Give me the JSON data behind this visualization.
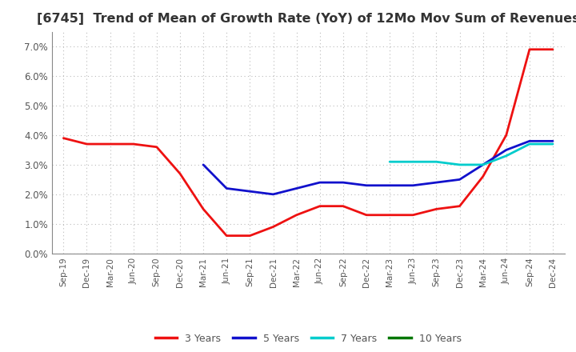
{
  "title": "[6745]  Trend of Mean of Growth Rate (YoY) of 12Mo Mov Sum of Revenues",
  "title_fontsize": 11.5,
  "title_color": "#333333",
  "ylim": [
    0.0,
    0.075
  ],
  "yticks": [
    0.0,
    0.01,
    0.02,
    0.03,
    0.04,
    0.05,
    0.06,
    0.07
  ],
  "x_labels": [
    "Sep-19",
    "Dec-19",
    "Mar-20",
    "Jun-20",
    "Sep-20",
    "Dec-20",
    "Mar-21",
    "Jun-21",
    "Sep-21",
    "Dec-21",
    "Mar-22",
    "Jun-22",
    "Sep-22",
    "Dec-22",
    "Mar-23",
    "Jun-23",
    "Sep-23",
    "Dec-23",
    "Mar-24",
    "Jun-24",
    "Sep-24",
    "Dec-24"
  ],
  "series": {
    "3 Years": {
      "color": "#EE1111",
      "linewidth": 2.0,
      "values": [
        0.039,
        0.037,
        0.037,
        0.037,
        0.036,
        0.027,
        0.015,
        0.006,
        0.006,
        0.009,
        0.013,
        0.016,
        0.016,
        0.013,
        0.013,
        0.013,
        0.015,
        0.016,
        0.026,
        0.04,
        0.069,
        0.069
      ]
    },
    "5 Years": {
      "color": "#1111CC",
      "linewidth": 2.0,
      "values": [
        null,
        null,
        null,
        null,
        null,
        null,
        0.03,
        0.022,
        0.021,
        0.02,
        0.022,
        0.024,
        0.024,
        0.023,
        0.023,
        0.023,
        0.024,
        0.025,
        0.03,
        0.035,
        0.038,
        0.038
      ]
    },
    "7 Years": {
      "color": "#00CCCC",
      "linewidth": 2.0,
      "values": [
        null,
        null,
        null,
        null,
        null,
        null,
        null,
        null,
        null,
        null,
        null,
        null,
        null,
        null,
        0.031,
        0.031,
        0.031,
        0.03,
        0.03,
        0.033,
        0.037,
        0.037
      ]
    },
    "10 Years": {
      "color": "#007700",
      "linewidth": 2.0,
      "values": [
        null,
        null,
        null,
        null,
        null,
        null,
        null,
        null,
        null,
        null,
        null,
        null,
        null,
        null,
        null,
        null,
        null,
        null,
        null,
        null,
        null,
        null
      ]
    }
  },
  "legend_order": [
    "3 Years",
    "5 Years",
    "7 Years",
    "10 Years"
  ],
  "background_color": "#FFFFFF",
  "grid_color": "#BBBBBB",
  "tick_color": "#555555",
  "spine_color": "#888888"
}
